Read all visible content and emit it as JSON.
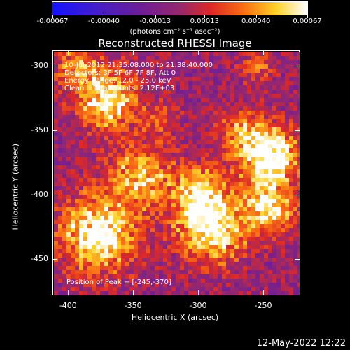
{
  "colorbar": {
    "ticks": [
      "-0.00067",
      "-0.00040",
      "-0.00013",
      "0.00013",
      "0.00040",
      "0.00067"
    ],
    "units": "(photons cm⁻² s⁻¹ asec⁻²)"
  },
  "plot": {
    "title": "Reconstructed RHESSI Image",
    "info_lines": [
      "10-Jul-2012 21:35:08.000 to 21:38:40.000",
      "Detectors: 3F 5F 6F 7F 8F, Att 0",
      "Energy Range: 12.0 - 25.0 keV",
      "Clean    Total counts: 2.12E+03"
    ],
    "peak_label": "Position of Peak = [-245,-370]",
    "xlabel": "Heliocentric X (arcsec)",
    "ylabel": "Heliocentric Y (arcsec)",
    "xticks": [
      "-400",
      "-350",
      "-300",
      "-250"
    ],
    "yticks": [
      "-300",
      "-350",
      "-400",
      "-450"
    ]
  },
  "footer": {
    "timestamp": "12-May-2022 12:22"
  },
  "chart_data": {
    "type": "heatmap",
    "title": "Reconstructed RHESSI Image",
    "xlabel": "Heliocentric X (arcsec)",
    "ylabel": "Heliocentric Y (arcsec)",
    "xlim": [
      -412,
      -222
    ],
    "ylim": [
      -478,
      -288
    ],
    "value_range": [
      -0.00067,
      0.00067
    ],
    "colormap": "blue-purple-red-yellow-white",
    "peak": [
      -245,
      -370
    ],
    "hot_regions": [
      {
        "x": -370,
        "y": -325,
        "sigma": 16,
        "amp": 0.0007
      },
      {
        "x": -395,
        "y": -300,
        "sigma": 12,
        "amp": 0.0004
      },
      {
        "x": -345,
        "y": -385,
        "sigma": 18,
        "amp": 0.0005
      },
      {
        "x": -378,
        "y": -430,
        "sigma": 20,
        "amp": 0.0008
      },
      {
        "x": -290,
        "y": -425,
        "sigma": 18,
        "amp": 0.0008
      },
      {
        "x": -300,
        "y": -395,
        "sigma": 14,
        "amp": 0.00045
      },
      {
        "x": -245,
        "y": -370,
        "sigma": 16,
        "amp": 0.00085
      },
      {
        "x": -245,
        "y": -410,
        "sigma": 14,
        "amp": 0.0006
      },
      {
        "x": -268,
        "y": -350,
        "sigma": 12,
        "amp": 0.0004
      },
      {
        "x": -255,
        "y": -300,
        "sigma": 10,
        "amp": 0.00025
      },
      {
        "x": -330,
        "y": -340,
        "sigma": 10,
        "amp": 0.00025
      }
    ]
  }
}
